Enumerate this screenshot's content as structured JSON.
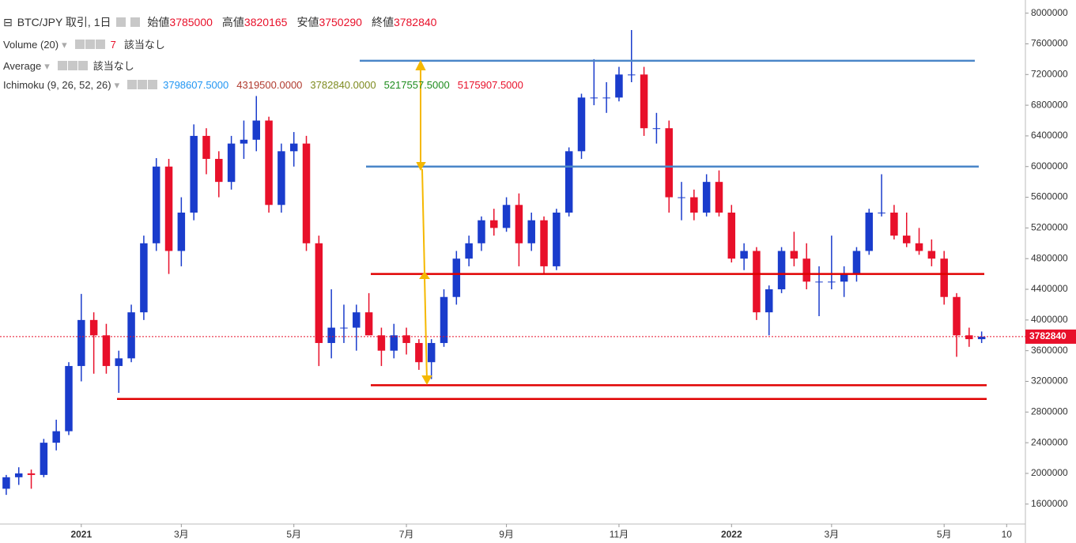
{
  "header": {
    "title": "BTC/JPY 取引, 1日",
    "ohlc": [
      {
        "label": "始値",
        "value": 3785000
      },
      {
        "label": "高値",
        "value": 3820165
      },
      {
        "label": "安値",
        "value": 3750290
      },
      {
        "label": "終値",
        "value": 3782840
      }
    ]
  },
  "indicators": [
    {
      "name": "Volume (20)",
      "values": [
        {
          "text": 7,
          "color": "#e8102a"
        },
        {
          "text": "該当なし",
          "color": "#333333"
        }
      ]
    },
    {
      "name": "Average",
      "values": [
        {
          "text": "該当なし",
          "color": "#333333"
        }
      ]
    },
    {
      "name": "Ichimoku (9, 26, 52, 26)",
      "values": [
        {
          "text": "3798607.5000",
          "color": "#2196f3"
        },
        {
          "text": "4319500.0000",
          "color": "#b03a2e"
        },
        {
          "text": "3782840.0000",
          "color": "#7d8a1e"
        },
        {
          "text": "5217557.5000",
          "color": "#1e8c1e"
        },
        {
          "text": "5175907.5000",
          "color": "#e8102a"
        }
      ]
    }
  ],
  "chart_data": {
    "type": "candlestick",
    "categories": [
      null,
      null,
      null,
      null,
      null,
      null,
      "2021",
      null,
      null,
      null,
      null,
      null,
      null,
      null,
      "3月",
      null,
      null,
      null,
      null,
      null,
      null,
      null,
      null,
      "5月",
      null,
      null,
      null,
      null,
      null,
      null,
      null,
      null,
      "7月",
      null,
      null,
      null,
      null,
      null,
      null,
      null,
      "9月",
      null,
      null,
      null,
      null,
      null,
      null,
      null,
      null,
      "11月",
      null,
      null,
      null,
      null,
      null,
      null,
      null,
      null,
      "2022",
      null,
      null,
      null,
      null,
      null,
      null,
      null,
      "3月",
      null,
      null,
      null,
      null,
      null,
      null,
      null,
      null,
      "5月",
      null,
      null,
      null,
      null,
      "10",
      null
    ],
    "open": [
      1800000,
      1950000,
      2000000,
      1980000,
      2400000,
      2550000,
      3400000,
      4000000,
      3800000,
      3400000,
      3500000,
      4100000,
      5000000,
      6000000,
      4900000,
      5400000,
      6400000,
      6100000,
      5800000,
      6300000,
      6350000,
      6600000,
      5500000,
      6200000,
      6300000,
      5000000,
      3700000,
      3900000,
      3900000,
      4100000,
      3800000,
      3600000,
      3800000,
      3700000,
      3450000,
      3700000,
      4300000,
      4800000,
      5000000,
      5300000,
      5200000,
      5500000,
      5000000,
      5300000,
      4700000,
      5400000,
      6200000,
      6900000,
      6900000,
      6900000,
      7200000,
      7200000,
      6500000,
      6500000,
      5600000,
      5600000,
      5400000,
      5800000,
      5400000,
      4800000,
      4900000,
      4100000,
      4400000,
      4900000,
      4800000,
      4500000,
      4500000,
      4500000,
      4600000,
      4900000,
      5400000,
      5400000,
      5100000,
      5000000,
      4900000,
      4800000,
      4300000,
      3800000,
      3750000,
      null,
      null,
      null
    ],
    "high": [
      1980000,
      2080000,
      2050000,
      2450000,
      2700000,
      3450000,
      4340000,
      4100000,
      3950000,
      3600000,
      4200000,
      5100000,
      6110000,
      6100000,
      5600000,
      6550000,
      6500000,
      6200000,
      6400000,
      6600000,
      6920000,
      6650000,
      6300000,
      6450000,
      6400000,
      5100000,
      4400000,
      4200000,
      4200000,
      4350000,
      3900000,
      3950000,
      3900000,
      3750000,
      3750000,
      4400000,
      4900000,
      5100000,
      5350000,
      5450000,
      5600000,
      5650000,
      5400000,
      5350000,
      5450000,
      6250000,
      6950000,
      7400000,
      7100000,
      7300000,
      7780000,
      7300000,
      6700000,
      6600000,
      5800000,
      5700000,
      5900000,
      5950000,
      5500000,
      5000000,
      4950000,
      4450000,
      4950000,
      5150000,
      5000000,
      4700000,
      5100000,
      4700000,
      4950000,
      5450000,
      5900000,
      5500000,
      5400000,
      5200000,
      5050000,
      4900000,
      4350000,
      3900000,
      3850000,
      null,
      null,
      null
    ],
    "low": [
      1720000,
      1850000,
      1800000,
      1950000,
      2300000,
      2500000,
      3200000,
      3300000,
      3300000,
      3050000,
      3450000,
      4000000,
      4900000,
      4600000,
      4700000,
      5300000,
      5900000,
      5600000,
      5700000,
      6100000,
      6200000,
      5400000,
      5400000,
      6000000,
      4900000,
      3400000,
      3500000,
      3700000,
      3600000,
      3800000,
      3400000,
      3500000,
      3550000,
      3350000,
      3230000,
      3650000,
      4200000,
      4700000,
      4900000,
      5100000,
      5150000,
      4700000,
      4900000,
      4600000,
      4650000,
      5350000,
      6100000,
      6800000,
      6700000,
      6850000,
      7100000,
      6400000,
      6300000,
      5400000,
      5300000,
      5300000,
      5350000,
      5350000,
      4750000,
      4650000,
      4000000,
      3800000,
      4350000,
      4700000,
      4400000,
      4050000,
      4400000,
      4300000,
      4500000,
      4850000,
      5350000,
      5050000,
      4950000,
      4850000,
      4700000,
      4200000,
      3520000,
      3650000,
      3700000,
      null,
      null,
      null
    ],
    "close": [
      1950000,
      2000000,
      1980000,
      2400000,
      2550000,
      3400000,
      4000000,
      3800000,
      3400000,
      3500000,
      4100000,
      5000000,
      6000000,
      4900000,
      5400000,
      6400000,
      6100000,
      5800000,
      6300000,
      6350000,
      6600000,
      5500000,
      6200000,
      6300000,
      5000000,
      3700000,
      3900000,
      3900000,
      4100000,
      3800000,
      3600000,
      3800000,
      3700000,
      3450000,
      3700000,
      4300000,
      4800000,
      5000000,
      5300000,
      5200000,
      5500000,
      5000000,
      5300000,
      4700000,
      5400000,
      6200000,
      6900000,
      6900000,
      6900000,
      7200000,
      7200000,
      6500000,
      6500000,
      5600000,
      5600000,
      5400000,
      5800000,
      5400000,
      4800000,
      4900000,
      4100000,
      4400000,
      4900000,
      4800000,
      4500000,
      4500000,
      4500000,
      4600000,
      4900000,
      5400000,
      5400000,
      5100000,
      5000000,
      4900000,
      4800000,
      4300000,
      3800000,
      3750000,
      3782840,
      null,
      null,
      null
    ],
    "up_color": "#1a3ccc",
    "down_color": "#e8102a",
    "ylim": [
      1340000,
      8120000
    ],
    "yticks": [
      1600000,
      2000000,
      2400000,
      2800000,
      3200000,
      3600000,
      4000000,
      4400000,
      4800000,
      5200000,
      5600000,
      6000000,
      6400000,
      6800000,
      7200000,
      7600000,
      8000000
    ],
    "hlines": [
      {
        "value": 7380000,
        "color": "#4a86c8"
      },
      {
        "value": 6000000,
        "color": "#4a86c8"
      },
      {
        "value": 4600000,
        "color": "#e00000"
      },
      {
        "value": 3150000,
        "color": "#e00000"
      },
      {
        "value": 2970000,
        "color": "#e00000"
      }
    ],
    "price_line_color": "#e8102a"
  }
}
